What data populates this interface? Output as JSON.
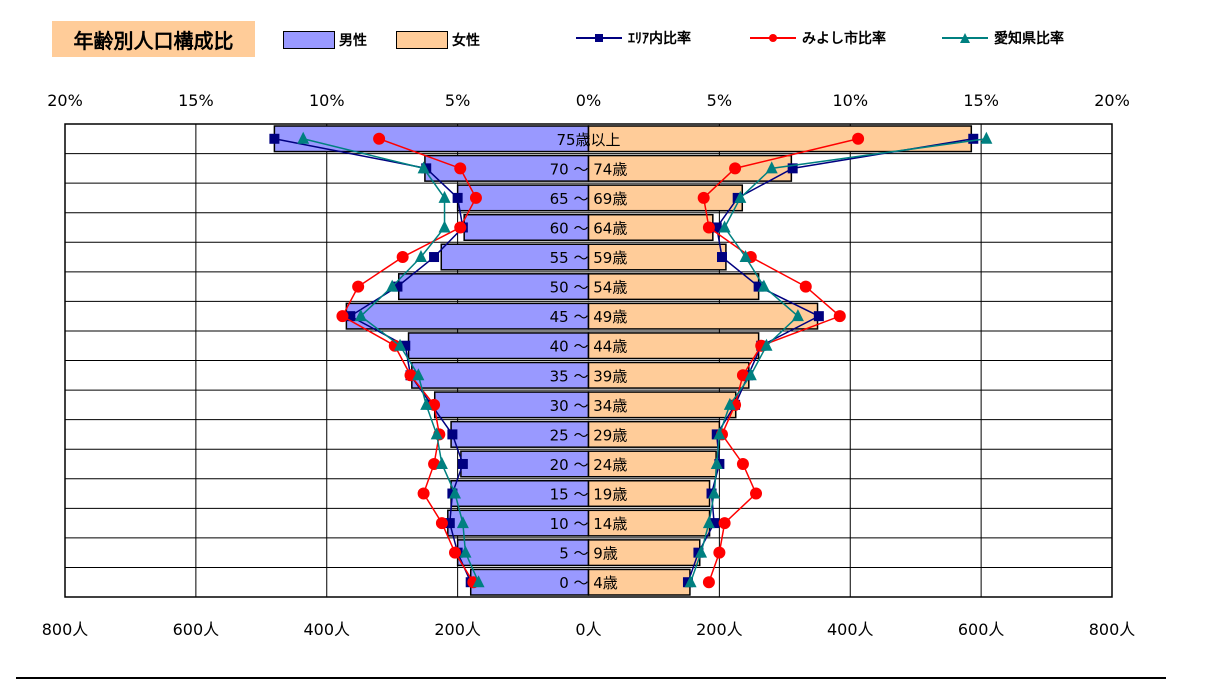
{
  "title": "年齢別人口構成比",
  "legend": {
    "male": "男性",
    "female": "女性",
    "area_ratio": "ｴﾘｱ内比率",
    "miyoshi_ratio": "みよし市比率",
    "aichi_ratio": "愛知県比率"
  },
  "colors": {
    "male_fill": "#9999ff",
    "female_fill": "#ffcc99",
    "area_ratio": "#000080",
    "miyoshi_ratio": "#ff0000",
    "aichi_ratio": "#008080"
  },
  "chart_data": {
    "type": "bar",
    "orientation": "horizontal population pyramid",
    "categories": [
      "75歳以上",
      "70 ～ 74歳",
      "65 ～ 69歳",
      "60 ～ 64歳",
      "55 ～ 59歳",
      "50 ～ 54歳",
      "45 ～ 49歳",
      "40 ～ 44歳",
      "35 ～ 39歳",
      "30 ～ 34歳",
      "25 ～ 29歳",
      "20 ～ 24歳",
      "15 ～ 19歳",
      "10 ～ 14歳",
      "5 ～ 9歳",
      "0 ～ 4歳"
    ],
    "top_axis": {
      "ticks": [
        "20%",
        "15%",
        "10%",
        "5%",
        "0%",
        "5%",
        "10%",
        "15%",
        "20%"
      ],
      "range_percent": [
        -20,
        20
      ]
    },
    "bottom_axis": {
      "ticks": [
        "800人",
        "600人",
        "400人",
        "200人",
        "0人",
        "200人",
        "400人",
        "600人",
        "800人"
      ],
      "range_persons": [
        -800,
        800
      ]
    },
    "series": [
      {
        "name": "男性",
        "kind": "bar",
        "side": "left",
        "unit": "人",
        "values": [
          480,
          250,
          200,
          190,
          225,
          290,
          370,
          275,
          270,
          235,
          210,
          195,
          210,
          215,
          200,
          180
        ]
      },
      {
        "name": "女性",
        "kind": "bar",
        "side": "right",
        "unit": "人",
        "values": [
          585,
          310,
          235,
          190,
          210,
          260,
          350,
          260,
          245,
          225,
          200,
          195,
          185,
          185,
          170,
          155
        ]
      },
      {
        "name": "ｴﾘｱ内比率",
        "kind": "line",
        "unit": "%",
        "male": [
          12.0,
          6.2,
          5.0,
          4.8,
          5.9,
          7.3,
          9.1,
          7.0,
          6.8,
          6.0,
          5.2,
          4.8,
          5.2,
          5.3,
          5.0,
          4.5
        ],
        "female": [
          14.7,
          7.8,
          5.7,
          4.9,
          5.1,
          6.5,
          8.8,
          6.6,
          6.1,
          5.6,
          4.9,
          5.0,
          4.7,
          4.8,
          4.2,
          3.8
        ]
      },
      {
        "name": "みよし市比率",
        "kind": "line",
        "unit": "%",
        "male": [
          8.0,
          4.9,
          4.3,
          4.9,
          7.1,
          8.8,
          9.4,
          7.4,
          6.8,
          5.9,
          5.7,
          5.9,
          6.3,
          5.6,
          5.1,
          4.4
        ],
        "female": [
          10.3,
          5.6,
          4.4,
          4.6,
          6.2,
          8.3,
          9.6,
          6.6,
          5.9,
          5.6,
          5.1,
          5.9,
          6.4,
          5.2,
          5.0,
          4.6
        ]
      },
      {
        "name": "愛知県比率",
        "kind": "line",
        "unit": "%",
        "male": [
          10.9,
          6.3,
          5.5,
          5.5,
          6.4,
          7.5,
          8.7,
          7.2,
          6.5,
          6.2,
          5.8,
          5.6,
          5.1,
          4.8,
          4.7,
          4.2
        ],
        "female": [
          15.2,
          7.0,
          5.8,
          5.2,
          6.0,
          6.7,
          8.0,
          6.8,
          6.2,
          5.4,
          5.0,
          4.9,
          4.8,
          4.6,
          4.3,
          3.9
        ]
      }
    ]
  }
}
